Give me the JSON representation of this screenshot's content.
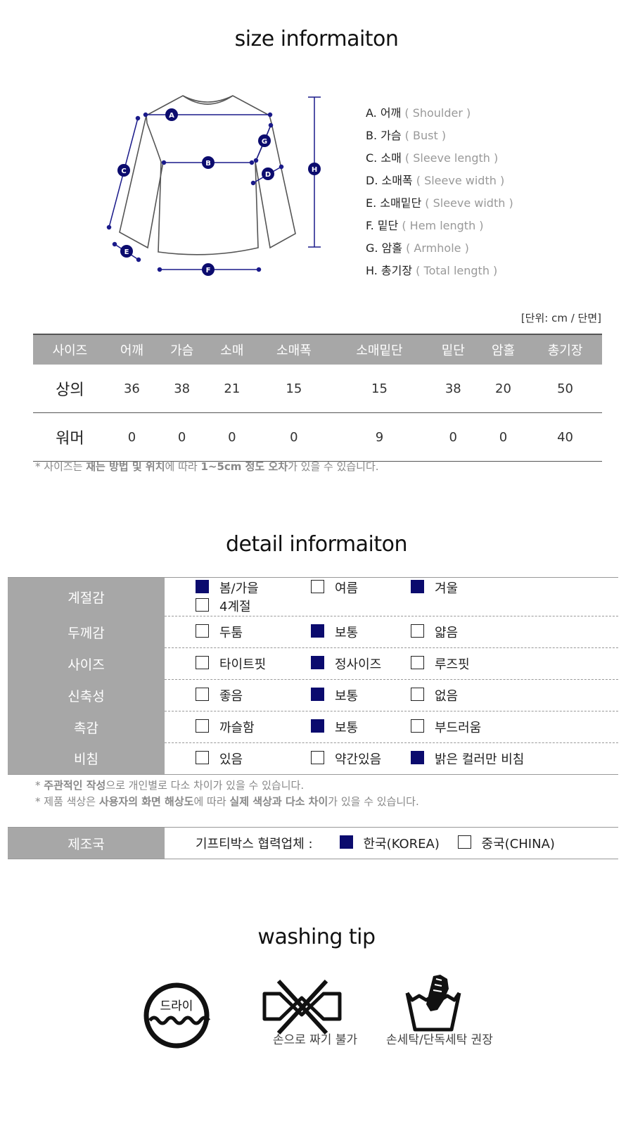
{
  "size_section": {
    "title": "size informaiton",
    "diagram_markers": [
      "A",
      "B",
      "C",
      "D",
      "E",
      "F",
      "G",
      "H"
    ],
    "legend": [
      {
        "label": "A. 어깨",
        "en": " ( Shoulder )"
      },
      {
        "label": "B. 가슴",
        "en": " ( Bust )"
      },
      {
        "label": "C. 소매",
        "en": " ( Sleeve length )"
      },
      {
        "label": "D. 소매폭",
        "en": " ( Sleeve width )"
      },
      {
        "label": "E. 소매밑단",
        "en": " ( Sleeve width )"
      },
      {
        "label": "F. 밑단",
        "en": " ( Hem length )"
      },
      {
        "label": "G. 암홀",
        "en": " ( Armhole )"
      },
      {
        "label": "H. 총기장",
        "en": " ( Total length )"
      }
    ],
    "unit_note": "[단위: cm / 단면]",
    "table": {
      "headers": [
        "사이즈",
        "어깨",
        "가슴",
        "소매",
        "소매폭",
        "소매밑단",
        "밑단",
        "암홀",
        "총기장"
      ],
      "rows": [
        [
          "상의",
          "36",
          "38",
          "21",
          "15",
          "15",
          "38",
          "20",
          "50"
        ],
        [
          "워머",
          "0",
          "0",
          "0",
          "0",
          "9",
          "0",
          "0",
          "40"
        ]
      ]
    },
    "footnote": {
      "p1": "* 사이즈는 ",
      "b1": "재는 방법 및 위치",
      "p2": "에 따라 ",
      "b2": "1~5cm 정도 오차",
      "p3": "가 있을 수 있습니다."
    }
  },
  "detail_section": {
    "title": "detail informaiton",
    "rows": [
      {
        "label": "계절감",
        "options": [
          {
            "text": "봄/가을",
            "checked": true
          },
          {
            "text": "여름",
            "checked": false
          },
          {
            "text": "겨울",
            "checked": true
          },
          {
            "text": "4계절",
            "checked": false
          }
        ]
      },
      {
        "label": "두께감",
        "options": [
          {
            "text": "두툼",
            "checked": false
          },
          {
            "text": "보통",
            "checked": true
          },
          {
            "text": "얇음",
            "checked": false
          }
        ]
      },
      {
        "label": "사이즈",
        "options": [
          {
            "text": "타이트핏",
            "checked": false
          },
          {
            "text": "정사이즈",
            "checked": true
          },
          {
            "text": "루즈핏",
            "checked": false
          }
        ]
      },
      {
        "label": "신축성",
        "options": [
          {
            "text": "좋음",
            "checked": false
          },
          {
            "text": "보통",
            "checked": true
          },
          {
            "text": "없음",
            "checked": false
          }
        ]
      },
      {
        "label": "촉감",
        "options": [
          {
            "text": "까슬함",
            "checked": false
          },
          {
            "text": "보통",
            "checked": true
          },
          {
            "text": "부드러움",
            "checked": false
          }
        ]
      },
      {
        "label": "비침",
        "options": [
          {
            "text": "있음",
            "checked": false
          },
          {
            "text": "약간있음",
            "checked": false
          },
          {
            "text": "밝은 컬러만 비침",
            "checked": true
          }
        ]
      }
    ],
    "note1": {
      "p1": "* ",
      "b1": "주관적인 작성",
      "p2": "으로 개인별로 다소 차이가 있을 수 있습니다."
    },
    "note2": {
      "p1": "* 제품 색상은 ",
      "b1": "사용자의 화면 해상도",
      "p2": "에 따라 ",
      "b2": "실제 색상과 다소 차이",
      "p3": "가 있을 수 있습니다."
    }
  },
  "origin": {
    "label": "제조국",
    "prefix": "기프티박스 협력업체 :",
    "options": [
      {
        "text": "한국(KOREA)",
        "checked": true
      },
      {
        "text": "중국(CHINA)",
        "checked": false
      }
    ]
  },
  "washing_section": {
    "title": "washing tip",
    "dry_text": "드라이",
    "captions": [
      "손으로 짜기 불가",
      "손세탁/단독세탁 권장"
    ]
  },
  "colors": {
    "accent": "#0b0b6e",
    "header_gray": "#a7a7a7"
  }
}
